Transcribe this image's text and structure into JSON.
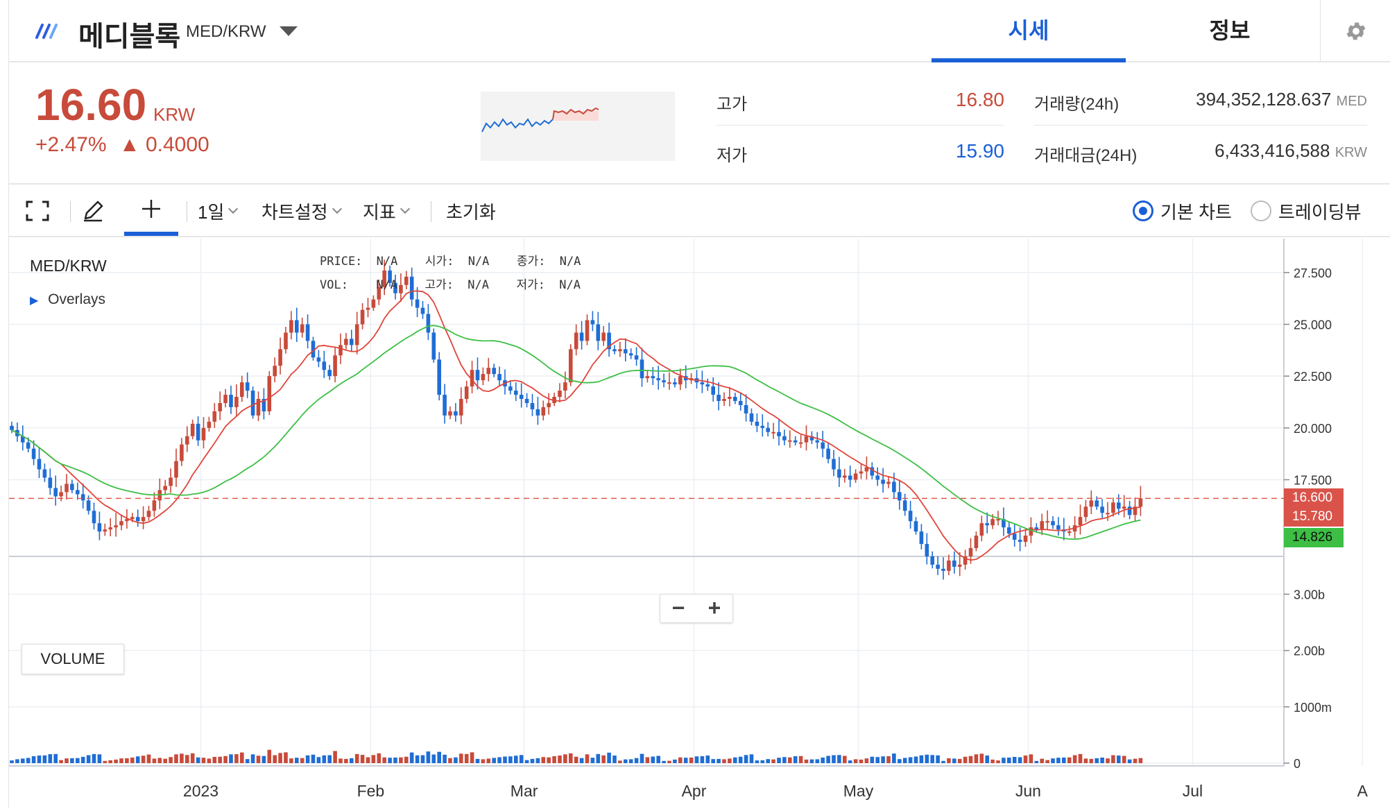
{
  "header": {
    "title": "메디블록",
    "pair": "MED/KRW",
    "tabs": [
      {
        "label": "시세",
        "active": true
      },
      {
        "label": "정보",
        "active": false
      }
    ]
  },
  "price_panel": {
    "price": "16.60",
    "unit": "KRW",
    "change_pct": "+2.47%",
    "change_abs": "▲ 0.4000",
    "high_label": "고가",
    "high_value": "16.80",
    "low_label": "저가",
    "low_value": "15.90",
    "volume_label": "거래량(24h)",
    "volume_value": "394,352,128.637",
    "volume_unit": "MED",
    "amount_label": "거래대금(24H)",
    "amount_value": "6,433,416,588",
    "amount_unit": "KRW",
    "colors": {
      "up": "#c84a3a",
      "down": "#1a5fd6"
    }
  },
  "toolbar": {
    "interval": "1일",
    "chart_settings": "차트설정",
    "indicators": "지표",
    "reset": "초기화",
    "view_basic": "기본 차트",
    "view_trading": "트레이딩뷰",
    "selected_view": "기본 차트"
  },
  "chart_labels": {
    "symbol": "MED/KRW",
    "overlays": "Overlays",
    "volume": "VOLUME",
    "legend_price": "PRICE:",
    "legend_price_val": "N/A",
    "legend_open": "시가:",
    "legend_open_val": "N/A",
    "legend_close": "종가:",
    "legend_close_val": "N/A",
    "legend_vol": "VOL:",
    "legend_vol_val": "N/A",
    "legend_high": "고가:",
    "legend_high_val": "N/A",
    "legend_low": "저가:",
    "legend_low_val": "N/A",
    "zoom_out": "−",
    "zoom_in": "+"
  },
  "chart_data": {
    "type": "candlestick",
    "price_axis": {
      "ticks": [
        "27.500",
        "25.000",
        "22.500",
        "20.000",
        "17.500"
      ],
      "values": [
        27.5,
        25.0,
        22.5,
        20.0,
        17.5
      ],
      "range": [
        14.0,
        28.8
      ]
    },
    "volume_axis": {
      "ticks": [
        "3.00b",
        "2.00b",
        "1000m",
        "0"
      ],
      "values": [
        3000,
        2000,
        1000,
        0
      ]
    },
    "x_labels": [
      "2023",
      "Feb",
      "Mar",
      "Apr",
      "May",
      "Jun",
      "Jul",
      "A"
    ],
    "x_label_days": [
      35,
      66,
      94,
      125,
      155,
      186,
      216,
      247
    ],
    "start_date": "2022-11-27",
    "closes": [
      19.9,
      19.6,
      19.3,
      19.0,
      18.5,
      18.0,
      17.6,
      17.1,
      16.7,
      16.9,
      17.3,
      17.0,
      16.8,
      16.5,
      16.0,
      15.4,
      15.0,
      15.1,
      15.2,
      15.3,
      15.5,
      15.6,
      15.7,
      15.5,
      15.7,
      16.0,
      16.5,
      17.0,
      17.2,
      17.6,
      18.4,
      19.2,
      19.6,
      20.2,
      19.4,
      20.0,
      20.3,
      20.8,
      21.2,
      21.6,
      21.0,
      21.5,
      22.2,
      21.8,
      20.6,
      21.4,
      20.8,
      22.5,
      23.0,
      23.8,
      24.6,
      25.2,
      24.6,
      25.0,
      24.2,
      23.4,
      23.2,
      22.8,
      22.5,
      23.5,
      24.0,
      24.3,
      24.0,
      25.0,
      25.7,
      25.8,
      26.2,
      26.8,
      27.6,
      27.0,
      26.5,
      26.9,
      27.3,
      26.2,
      25.8,
      25.5,
      24.6,
      23.3,
      21.6,
      20.6,
      20.8,
      20.6,
      21.4,
      22.0,
      22.8,
      22.3,
      22.6,
      22.9,
      22.6,
      22.3,
      22.0,
      21.8,
      21.6,
      21.4,
      21.2,
      20.9,
      20.6,
      21.0,
      21.2,
      21.5,
      21.8,
      22.2,
      23.8,
      24.6,
      24.2,
      25.2,
      25.0,
      24.2,
      24.6,
      23.8,
      23.7,
      23.8,
      23.6,
      23.5,
      23.3,
      22.4,
      22.5,
      22.4,
      22.3,
      22.2,
      22.2,
      22.1,
      22.5,
      22.3,
      22.4,
      22.2,
      22.1,
      22.0,
      21.6,
      21.3,
      21.4,
      21.5,
      21.3,
      21.1,
      20.7,
      20.3,
      20.1,
      20.0,
      19.8,
      19.8,
      19.6,
      19.4,
      19.4,
      19.3,
      19.3,
      19.6,
      19.4,
      19.3,
      19.0,
      18.5,
      18.0,
      17.6,
      17.7,
      17.5,
      17.8,
      17.9,
      18.1,
      17.7,
      17.5,
      17.3,
      17.4,
      16.9,
      16.5,
      16.0,
      15.5,
      15.0,
      14.4,
      13.8,
      13.4,
      13.2,
      13.1,
      13.6,
      13.3,
      13.4,
      13.8,
      14.2,
      14.8,
      15.4,
      15.3,
      15.6,
      15.6,
      15.2,
      14.9,
      14.6,
      14.5,
      14.8,
      15.2,
      15.1,
      15.5,
      15.5,
      15.3,
      15.1,
      15.0,
      15.0,
      15.3,
      15.7,
      16.2,
      16.5,
      16.2,
      15.9,
      15.9,
      16.4,
      16.1,
      16.2,
      15.8,
      16.2,
      16.6
    ],
    "ma_short_label": "15.780",
    "ma_long_label": "14.826",
    "current_label": "16.600",
    "colors": {
      "up": "#c84a3a",
      "down": "#1f6dd4",
      "ma_short": "#e0453a",
      "ma_long": "#3cbf44",
      "current_line": "#e0574a",
      "tag_up": "#d9534a",
      "tag_ma": "#3cbf44"
    }
  }
}
